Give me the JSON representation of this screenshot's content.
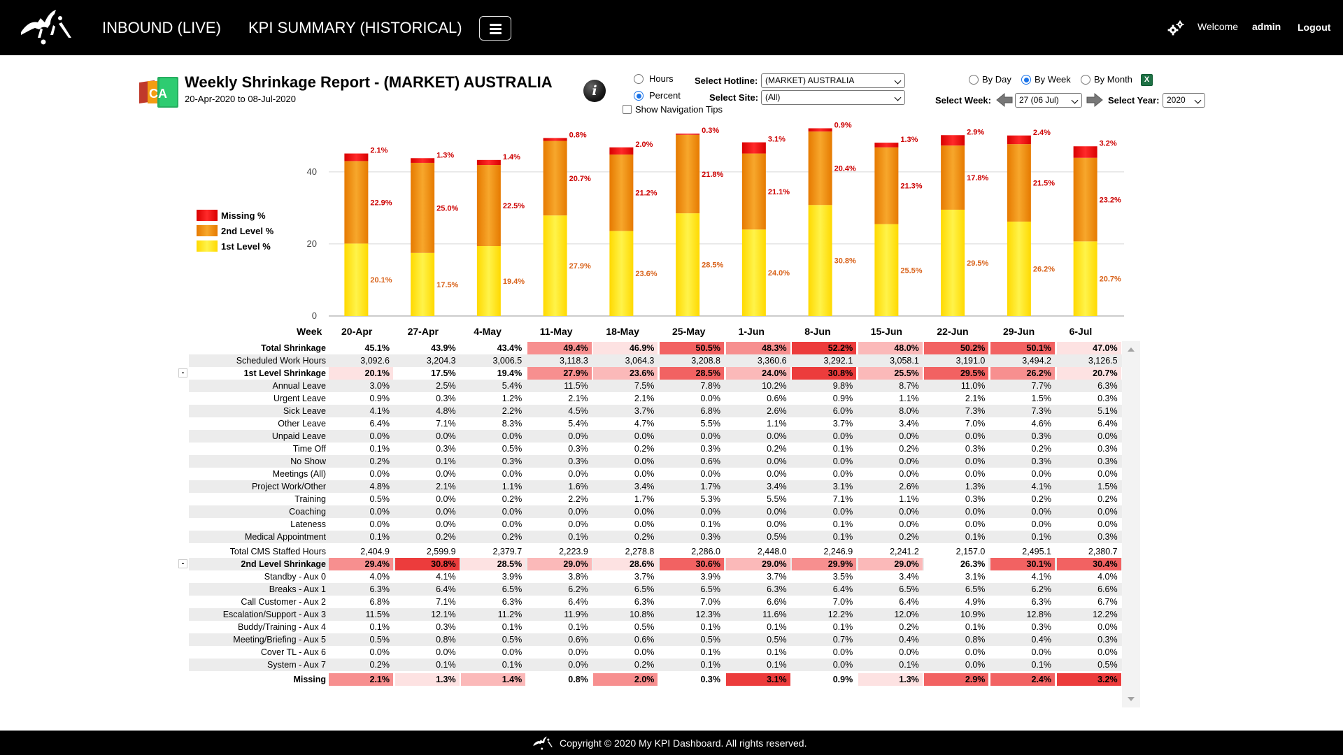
{
  "app": {
    "nav": {
      "live_label": "INBOUND (LIVE)",
      "summary_label": "KPI SUMMARY (HISTORICAL)"
    },
    "user": {
      "welcome_label": "Welcome",
      "username": "admin",
      "logout_label": "Logout"
    },
    "footer": "Copyright © 2020 My KPI Dashboard. All rights reserved."
  },
  "report": {
    "title": "Weekly Shrinkage Report - (MARKET) AUSTRALIA",
    "date_range": "20-Apr-2020 to 08-Jul-2020",
    "icon_text": "CA"
  },
  "controls": {
    "hours_label": "Hours",
    "percent_label": "Percent",
    "mode_selected": "Percent",
    "nav_tips_label": "Show Navigation Tips",
    "select_hotline_label": "Select Hotline:",
    "hotline_value": "(MARKET) AUSTRALIA",
    "select_site_label": "Select Site:",
    "site_value": "(All)",
    "by_day_label": "By Day",
    "by_week_label": "By Week",
    "by_month_label": "By Month",
    "period_selected": "By Week",
    "select_week_label": "Select Week:",
    "week_value": "27 (06 Jul)",
    "select_year_label": "Select Year:",
    "year_value": "2020",
    "excel_icon_text": "X"
  },
  "colors": {
    "missing": "#ee0000",
    "second_level": "#f28c00",
    "first_level": "#ffee00",
    "label_red": "#cc0000",
    "label_orange": "#d8621a"
  },
  "chart_data": {
    "type": "bar",
    "stacked": true,
    "categories": [
      "20-Apr",
      "27-Apr",
      "4-May",
      "11-May",
      "18-May",
      "25-May",
      "1-Jun",
      "8-Jun",
      "15-Jun",
      "22-Jun",
      "29-Jun",
      "6-Jul"
    ],
    "series": [
      {
        "name": "1st Level %",
        "values": [
          20.1,
          17.5,
          19.4,
          27.9,
          23.6,
          28.5,
          24.0,
          30.8,
          25.5,
          29.5,
          26.2,
          20.7
        ]
      },
      {
        "name": "2nd Level %",
        "values": [
          22.9,
          25.0,
          22.5,
          20.7,
          21.2,
          21.8,
          21.1,
          20.4,
          21.3,
          17.8,
          21.5,
          23.2
        ]
      },
      {
        "name": "Missing %",
        "values": [
          2.1,
          1.3,
          1.4,
          0.8,
          2.0,
          0.3,
          3.1,
          0.9,
          1.3,
          2.9,
          2.4,
          3.2
        ]
      }
    ],
    "yticks": [
      0,
      20,
      40
    ],
    "ylim": [
      0,
      52
    ],
    "legend": "left",
    "grid": true
  },
  "table": {
    "header_label": "Week",
    "columns": [
      "20-Apr",
      "27-Apr",
      "4-May",
      "11-May",
      "18-May",
      "25-May",
      "1-Jun",
      "8-Jun",
      "15-Jun",
      "22-Jun",
      "29-Jun",
      "6-Jul"
    ],
    "rows": [
      {
        "label": "Total Shrinkage",
        "bold": true,
        "values": [
          "45.1%",
          "43.9%",
          "43.4%",
          "49.4%",
          "46.9%",
          "50.5%",
          "48.3%",
          "52.2%",
          "48.0%",
          "50.2%",
          "50.1%",
          "47.0%"
        ],
        "heat": [
          0,
          0,
          0,
          3,
          1,
          4,
          3,
          5,
          2,
          4,
          4,
          1
        ]
      },
      {
        "label": "Scheduled Work Hours",
        "values": [
          "3,092.6",
          "3,204.3",
          "3,006.5",
          "3,118.3",
          "3,064.3",
          "3,208.8",
          "3,360.6",
          "3,292.1",
          "3,058.1",
          "3,191.0",
          "3,494.2",
          "3,126.5"
        ]
      },
      {
        "label": "1st Level Shrinkage",
        "bold": true,
        "collapse": true,
        "values": [
          "20.1%",
          "17.5%",
          "19.4%",
          "27.9%",
          "23.6%",
          "28.5%",
          "24.0%",
          "30.8%",
          "25.5%",
          "29.5%",
          "26.2%",
          "20.7%"
        ],
        "heat": [
          1,
          0,
          0,
          3,
          2,
          4,
          2,
          5,
          2,
          4,
          3,
          1
        ]
      },
      {
        "label": "Annual Leave",
        "values": [
          "3.0%",
          "2.5%",
          "5.4%",
          "11.5%",
          "7.5%",
          "7.8%",
          "10.2%",
          "9.8%",
          "8.7%",
          "11.0%",
          "7.7%",
          "6.3%"
        ]
      },
      {
        "label": "Urgent Leave",
        "values": [
          "0.9%",
          "0.3%",
          "1.2%",
          "2.1%",
          "2.1%",
          "0.0%",
          "0.6%",
          "0.9%",
          "1.1%",
          "2.1%",
          "1.5%",
          "0.3%"
        ]
      },
      {
        "label": "Sick Leave",
        "values": [
          "4.1%",
          "4.8%",
          "2.2%",
          "4.5%",
          "3.7%",
          "6.8%",
          "2.6%",
          "6.0%",
          "8.0%",
          "7.3%",
          "7.3%",
          "5.1%"
        ]
      },
      {
        "label": "Other Leave",
        "values": [
          "6.4%",
          "7.1%",
          "8.3%",
          "5.4%",
          "4.7%",
          "5.5%",
          "1.1%",
          "3.7%",
          "3.4%",
          "7.0%",
          "4.6%",
          "6.4%"
        ]
      },
      {
        "label": "Unpaid Leave",
        "values": [
          "0.0%",
          "0.0%",
          "0.0%",
          "0.0%",
          "0.0%",
          "0.0%",
          "0.0%",
          "0.0%",
          "0.0%",
          "0.0%",
          "0.3%",
          "0.0%"
        ]
      },
      {
        "label": "Time Off",
        "values": [
          "0.1%",
          "0.3%",
          "0.5%",
          "0.3%",
          "0.2%",
          "0.3%",
          "0.2%",
          "0.1%",
          "0.2%",
          "0.3%",
          "0.2%",
          "0.3%"
        ]
      },
      {
        "label": "No Show",
        "values": [
          "0.2%",
          "0.1%",
          "0.3%",
          "0.3%",
          "0.0%",
          "0.6%",
          "0.0%",
          "0.0%",
          "0.0%",
          "0.0%",
          "0.3%",
          "0.3%"
        ]
      },
      {
        "label": "Meetings (All)",
        "values": [
          "0.0%",
          "0.0%",
          "0.0%",
          "0.0%",
          "0.0%",
          "0.0%",
          "0.0%",
          "0.0%",
          "0.0%",
          "0.0%",
          "0.0%",
          "0.0%"
        ]
      },
      {
        "label": "Project Work/Other",
        "values": [
          "4.8%",
          "2.1%",
          "1.1%",
          "1.6%",
          "3.4%",
          "1.7%",
          "3.4%",
          "3.1%",
          "2.6%",
          "1.3%",
          "4.1%",
          "1.5%"
        ]
      },
      {
        "label": "Training",
        "values": [
          "0.5%",
          "0.0%",
          "0.2%",
          "2.2%",
          "1.7%",
          "5.3%",
          "5.5%",
          "7.1%",
          "1.1%",
          "0.3%",
          "0.2%",
          "0.2%"
        ]
      },
      {
        "label": "Coaching",
        "values": [
          "0.0%",
          "0.0%",
          "0.0%",
          "0.0%",
          "0.0%",
          "0.0%",
          "0.0%",
          "0.0%",
          "0.0%",
          "0.0%",
          "0.0%",
          "0.0%"
        ]
      },
      {
        "label": "Lateness",
        "values": [
          "0.0%",
          "0.0%",
          "0.0%",
          "0.0%",
          "0.0%",
          "0.1%",
          "0.0%",
          "0.1%",
          "0.0%",
          "0.0%",
          "0.0%",
          "0.0%"
        ]
      },
      {
        "label": "Medical Appointment",
        "values": [
          "0.1%",
          "0.2%",
          "0.2%",
          "0.1%",
          "0.2%",
          "0.3%",
          "0.5%",
          "0.1%",
          "0.2%",
          "0.1%",
          "0.1%",
          "0.3%"
        ]
      },
      {
        "label": "Total CMS Staffed Hours",
        "values": [
          "2,404.9",
          "2,599.9",
          "2,379.7",
          "2,223.9",
          "2,278.8",
          "2,286.0",
          "2,448.0",
          "2,246.9",
          "2,241.2",
          "2,157.0",
          "2,495.1",
          "2,380.7"
        ]
      },
      {
        "label": "2nd Level Shrinkage",
        "bold": true,
        "collapse": true,
        "values": [
          "29.4%",
          "30.8%",
          "28.5%",
          "29.0%",
          "28.6%",
          "30.6%",
          "29.0%",
          "29.9%",
          "29.0%",
          "26.3%",
          "30.1%",
          "30.4%"
        ],
        "heat": [
          3,
          5,
          1,
          2,
          1,
          4,
          2,
          3,
          2,
          0,
          4,
          4
        ]
      },
      {
        "label": "Standby - Aux 0",
        "values": [
          "4.0%",
          "4.1%",
          "3.9%",
          "3.8%",
          "3.7%",
          "3.9%",
          "3.7%",
          "3.5%",
          "3.4%",
          "3.1%",
          "4.1%",
          "4.0%"
        ]
      },
      {
        "label": "Breaks - Aux 1",
        "values": [
          "6.3%",
          "6.4%",
          "6.5%",
          "6.2%",
          "6.5%",
          "6.5%",
          "6.3%",
          "6.4%",
          "6.5%",
          "6.5%",
          "6.2%",
          "6.6%"
        ]
      },
      {
        "label": "Call Customer - Aux 2",
        "values": [
          "6.8%",
          "7.1%",
          "6.3%",
          "6.4%",
          "6.3%",
          "7.0%",
          "6.6%",
          "7.0%",
          "6.4%",
          "4.9%",
          "6.3%",
          "6.7%"
        ]
      },
      {
        "label": "Escalation/Support - Aux 3",
        "values": [
          "11.5%",
          "12.1%",
          "11.2%",
          "11.9%",
          "10.8%",
          "12.3%",
          "11.6%",
          "12.2%",
          "12.0%",
          "10.9%",
          "12.8%",
          "12.2%"
        ]
      },
      {
        "label": "Buddy/Training - Aux 4",
        "values": [
          "0.1%",
          "0.3%",
          "0.1%",
          "0.1%",
          "0.5%",
          "0.1%",
          "0.1%",
          "0.1%",
          "0.2%",
          "0.1%",
          "0.3%",
          "0.0%"
        ]
      },
      {
        "label": "Meeting/Briefing - Aux 5",
        "values": [
          "0.5%",
          "0.8%",
          "0.5%",
          "0.6%",
          "0.6%",
          "0.5%",
          "0.5%",
          "0.7%",
          "0.4%",
          "0.8%",
          "0.4%",
          "0.3%"
        ]
      },
      {
        "label": "Cover TL - Aux 6",
        "values": [
          "0.0%",
          "0.0%",
          "0.0%",
          "0.0%",
          "0.0%",
          "0.1%",
          "0.1%",
          "0.0%",
          "0.0%",
          "0.0%",
          "0.0%",
          "0.0%"
        ]
      },
      {
        "label": "System - Aux 7",
        "values": [
          "0.2%",
          "0.1%",
          "0.1%",
          "0.0%",
          "0.2%",
          "0.1%",
          "0.1%",
          "0.0%",
          "0.1%",
          "0.0%",
          "0.1%",
          "0.5%"
        ]
      },
      {
        "label": "Missing",
        "bold": true,
        "values": [
          "2.1%",
          "1.3%",
          "1.4%",
          "0.8%",
          "2.0%",
          "0.3%",
          "3.1%",
          "0.9%",
          "1.3%",
          "2.9%",
          "2.4%",
          "3.2%"
        ],
        "heat": [
          3,
          1,
          2,
          0,
          3,
          0,
          5,
          0,
          1,
          4,
          4,
          5
        ]
      }
    ]
  }
}
